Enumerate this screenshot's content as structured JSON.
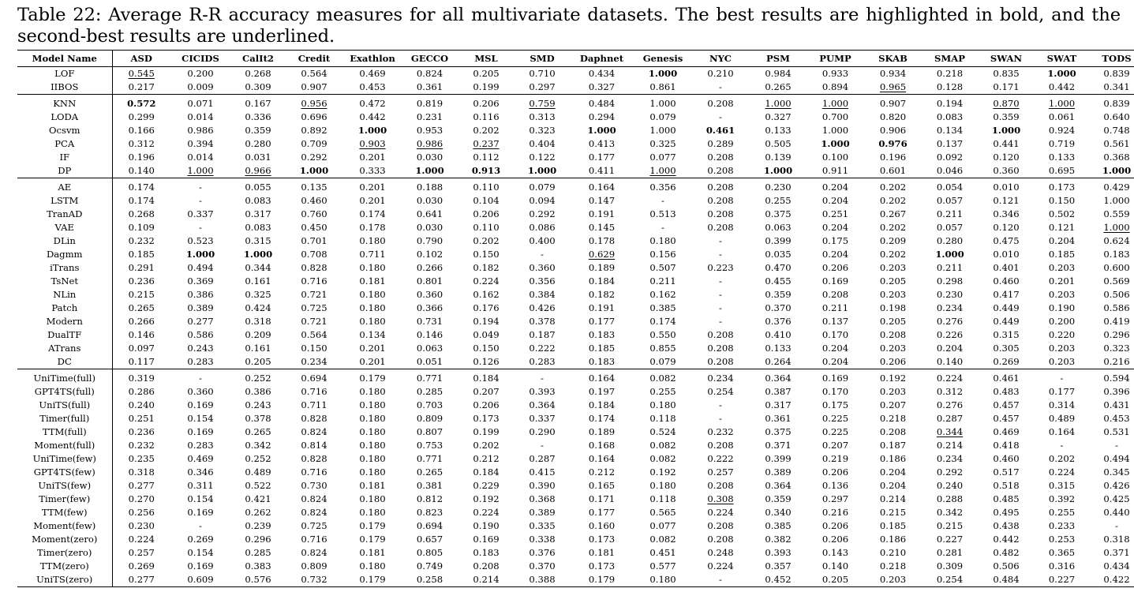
{
  "caption": "Table 22: Average R-R accuracy measures for all multivariate datasets. The best results are highlighted in bold, and the second-best results are underlined.",
  "columns": [
    "Model Name",
    "ASD",
    "CICIDS",
    "CalIt2",
    "Credit",
    "Exathlon",
    "GECCO",
    "MSL",
    "SMD",
    "Daphnet",
    "Genesis",
    "NYC",
    "PSM",
    "PUMP",
    "SKAB",
    "SMAP",
    "SWAN",
    "SWAT",
    "TODS"
  ],
  "groups": [
    [
      {
        "name": "LOF",
        "values": [
          "0.545",
          "0.200",
          "0.268",
          "0.564",
          "0.469",
          "0.824",
          "0.205",
          "0.710",
          "0.434",
          "1.000",
          "0.210",
          "0.984",
          "0.933",
          "0.934",
          "0.218",
          "0.835",
          "1.000",
          "0.839"
        ],
        "bold": [
          9,
          16
        ],
        "underline": [
          0
        ]
      },
      {
        "name": "IIBOS",
        "values": [
          "0.217",
          "0.009",
          "0.309",
          "0.907",
          "0.453",
          "0.361",
          "0.199",
          "0.297",
          "0.327",
          "0.861",
          "-",
          "0.265",
          "0.894",
          "0.965",
          "0.128",
          "0.171",
          "0.442",
          "0.341"
        ],
        "bold": [],
        "underline": [
          13
        ]
      }
    ],
    [
      {
        "name": "KNN",
        "values": [
          "0.572",
          "0.071",
          "0.167",
          "0.956",
          "0.472",
          "0.819",
          "0.206",
          "0.759",
          "0.484",
          "1.000",
          "0.208",
          "1.000",
          "1.000",
          "0.907",
          "0.194",
          "0.870",
          "1.000",
          "0.839"
        ],
        "bold": [
          0
        ],
        "underline": [
          3,
          7,
          11,
          12,
          15,
          16
        ]
      },
      {
        "name": "LODA",
        "values": [
          "0.299",
          "0.014",
          "0.336",
          "0.696",
          "0.442",
          "0.231",
          "0.116",
          "0.313",
          "0.294",
          "0.079",
          "-",
          "0.327",
          "0.700",
          "0.820",
          "0.083",
          "0.359",
          "0.061",
          "0.640"
        ],
        "bold": [],
        "underline": []
      },
      {
        "name": "Ocsvm",
        "values": [
          "0.166",
          "0.986",
          "0.359",
          "0.892",
          "1.000",
          "0.953",
          "0.202",
          "0.323",
          "1.000",
          "1.000",
          "0.461",
          "0.133",
          "1.000",
          "0.906",
          "0.134",
          "1.000",
          "0.924",
          "0.748"
        ],
        "bold": [
          4,
          8,
          10,
          15
        ],
        "underline": []
      },
      {
        "name": "PCA",
        "values": [
          "0.312",
          "0.394",
          "0.280",
          "0.709",
          "0.903",
          "0.986",
          "0.237",
          "0.404",
          "0.413",
          "0.325",
          "0.289",
          "0.505",
          "1.000",
          "0.976",
          "0.137",
          "0.441",
          "0.719",
          "0.561"
        ],
        "bold": [
          12,
          13
        ],
        "underline": [
          4,
          5,
          6
        ]
      },
      {
        "name": "IF",
        "values": [
          "0.196",
          "0.014",
          "0.031",
          "0.292",
          "0.201",
          "0.030",
          "0.112",
          "0.122",
          "0.177",
          "0.077",
          "0.208",
          "0.139",
          "0.100",
          "0.196",
          "0.092",
          "0.120",
          "0.133",
          "0.368"
        ],
        "bold": [],
        "underline": []
      },
      {
        "name": "DP",
        "values": [
          "0.140",
          "1.000",
          "0.966",
          "1.000",
          "0.333",
          "1.000",
          "0.913",
          "1.000",
          "0.411",
          "1.000",
          "0.208",
          "1.000",
          "0.911",
          "0.601",
          "0.046",
          "0.360",
          "0.695",
          "1.000"
        ],
        "bold": [
          3,
          5,
          6,
          7,
          11,
          17
        ],
        "underline": [
          1,
          2,
          9
        ]
      }
    ],
    [
      {
        "name": "AE",
        "values": [
          "0.174",
          "-",
          "0.055",
          "0.135",
          "0.201",
          "0.188",
          "0.110",
          "0.079",
          "0.164",
          "0.356",
          "0.208",
          "0.230",
          "0.204",
          "0.202",
          "0.054",
          "0.010",
          "0.173",
          "0.429"
        ],
        "bold": [],
        "underline": []
      },
      {
        "name": "LSTM",
        "values": [
          "0.174",
          "-",
          "0.083",
          "0.460",
          "0.201",
          "0.030",
          "0.104",
          "0.094",
          "0.147",
          "-",
          "0.208",
          "0.255",
          "0.204",
          "0.202",
          "0.057",
          "0.121",
          "0.150",
          "1.000"
        ],
        "bold": [],
        "underline": []
      },
      {
        "name": "TranAD",
        "values": [
          "0.268",
          "0.337",
          "0.317",
          "0.760",
          "0.174",
          "0.641",
          "0.206",
          "0.292",
          "0.191",
          "0.513",
          "0.208",
          "0.375",
          "0.251",
          "0.267",
          "0.211",
          "0.346",
          "0.502",
          "0.559"
        ],
        "bold": [],
        "underline": []
      },
      {
        "name": "VAE",
        "values": [
          "0.109",
          "-",
          "0.083",
          "0.450",
          "0.178",
          "0.030",
          "0.110",
          "0.086",
          "0.145",
          "-",
          "0.208",
          "0.063",
          "0.204",
          "0.202",
          "0.057",
          "0.120",
          "0.121",
          "1.000"
        ],
        "bold": [],
        "underline": [
          17
        ]
      },
      {
        "name": "DLin",
        "values": [
          "0.232",
          "0.523",
          "0.315",
          "0.701",
          "0.180",
          "0.790",
          "0.202",
          "0.400",
          "0.178",
          "0.180",
          "-",
          "0.399",
          "0.175",
          "0.209",
          "0.280",
          "0.475",
          "0.204",
          "0.624"
        ],
        "bold": [],
        "underline": []
      },
      {
        "name": "Dagmm",
        "values": [
          "0.185",
          "1.000",
          "1.000",
          "0.708",
          "0.711",
          "0.102",
          "0.150",
          "-",
          "0.629",
          "0.156",
          "-",
          "0.035",
          "0.204",
          "0.202",
          "1.000",
          "0.010",
          "0.185",
          "0.183"
        ],
        "bold": [
          1,
          2,
          14
        ],
        "underline": [
          8
        ]
      },
      {
        "name": "iTrans",
        "values": [
          "0.291",
          "0.494",
          "0.344",
          "0.828",
          "0.180",
          "0.266",
          "0.182",
          "0.360",
          "0.189",
          "0.507",
          "0.223",
          "0.470",
          "0.206",
          "0.203",
          "0.211",
          "0.401",
          "0.203",
          "0.600"
        ],
        "bold": [],
        "underline": []
      },
      {
        "name": "TsNet",
        "values": [
          "0.236",
          "0.369",
          "0.161",
          "0.716",
          "0.181",
          "0.801",
          "0.224",
          "0.356",
          "0.184",
          "0.211",
          "-",
          "0.455",
          "0.169",
          "0.205",
          "0.298",
          "0.460",
          "0.201",
          "0.569"
        ],
        "bold": [],
        "underline": []
      },
      {
        "name": "NLin",
        "values": [
          "0.215",
          "0.386",
          "0.325",
          "0.721",
          "0.180",
          "0.360",
          "0.162",
          "0.384",
          "0.182",
          "0.162",
          "-",
          "0.359",
          "0.208",
          "0.203",
          "0.230",
          "0.417",
          "0.203",
          "0.506"
        ],
        "bold": [],
        "underline": []
      },
      {
        "name": "Patch",
        "values": [
          "0.265",
          "0.389",
          "0.424",
          "0.725",
          "0.180",
          "0.366",
          "0.176",
          "0.426",
          "0.191",
          "0.385",
          "-",
          "0.370",
          "0.211",
          "0.198",
          "0.234",
          "0.449",
          "0.190",
          "0.586"
        ],
        "bold": [],
        "underline": []
      },
      {
        "name": "Modern",
        "values": [
          "0.266",
          "0.277",
          "0.318",
          "0.721",
          "0.180",
          "0.731",
          "0.194",
          "0.378",
          "0.177",
          "0.174",
          "-",
          "0.376",
          "0.137",
          "0.205",
          "0.276",
          "0.449",
          "0.200",
          "0.419"
        ],
        "bold": [],
        "underline": []
      },
      {
        "name": "DualTF",
        "values": [
          "0.146",
          "0.586",
          "0.209",
          "0.564",
          "0.134",
          "0.146",
          "0.049",
          "0.187",
          "0.183",
          "0.550",
          "0.208",
          "0.410",
          "0.170",
          "0.208",
          "0.226",
          "0.315",
          "0.220",
          "0.296"
        ],
        "bold": [],
        "underline": []
      },
      {
        "name": "ATrans",
        "values": [
          "0.097",
          "0.243",
          "0.161",
          "0.150",
          "0.201",
          "0.063",
          "0.150",
          "0.222",
          "0.185",
          "0.855",
          "0.208",
          "0.133",
          "0.204",
          "0.203",
          "0.204",
          "0.305",
          "0.203",
          "0.323"
        ],
        "bold": [],
        "underline": []
      },
      {
        "name": "DC",
        "values": [
          "0.117",
          "0.283",
          "0.205",
          "0.234",
          "0.201",
          "0.051",
          "0.126",
          "0.283",
          "0.183",
          "0.079",
          "0.208",
          "0.264",
          "0.204",
          "0.206",
          "0.140",
          "0.269",
          "0.203",
          "0.216"
        ],
        "bold": [],
        "underline": []
      }
    ],
    [
      {
        "name": "UniTime(full)",
        "values": [
          "0.319",
          "-",
          "0.252",
          "0.694",
          "0.179",
          "0.771",
          "0.184",
          "-",
          "0.164",
          "0.082",
          "0.234",
          "0.364",
          "0.169",
          "0.192",
          "0.224",
          "0.461",
          "-",
          "0.594"
        ],
        "bold": [],
        "underline": []
      },
      {
        "name": "GPT4TS(full)",
        "values": [
          "0.286",
          "0.360",
          "0.386",
          "0.716",
          "0.180",
          "0.285",
          "0.207",
          "0.393",
          "0.197",
          "0.255",
          "0.254",
          "0.387",
          "0.170",
          "0.203",
          "0.312",
          "0.483",
          "0.177",
          "0.396"
        ],
        "bold": [],
        "underline": []
      },
      {
        "name": "UniTS(full)",
        "values": [
          "0.240",
          "0.169",
          "0.243",
          "0.711",
          "0.180",
          "0.703",
          "0.206",
          "0.364",
          "0.184",
          "0.180",
          "-",
          "0.317",
          "0.175",
          "0.207",
          "0.276",
          "0.457",
          "0.314",
          "0.431"
        ],
        "bold": [],
        "underline": []
      },
      {
        "name": "Timer(full)",
        "values": [
          "0.251",
          "0.154",
          "0.378",
          "0.828",
          "0.180",
          "0.809",
          "0.173",
          "0.337",
          "0.174",
          "0.118",
          "-",
          "0.361",
          "0.225",
          "0.218",
          "0.287",
          "0.457",
          "0.489",
          "0.453"
        ],
        "bold": [],
        "underline": []
      },
      {
        "name": "TTM(full)",
        "values": [
          "0.236",
          "0.169",
          "0.265",
          "0.824",
          "0.180",
          "0.807",
          "0.199",
          "0.290",
          "0.189",
          "0.524",
          "0.232",
          "0.375",
          "0.225",
          "0.208",
          "0.344",
          "0.469",
          "0.164",
          "0.531"
        ],
        "bold": [],
        "underline": [
          14
        ]
      },
      {
        "name": "Moment(full)",
        "values": [
          "0.232",
          "0.283",
          "0.342",
          "0.814",
          "0.180",
          "0.753",
          "0.202",
          "-",
          "0.168",
          "0.082",
          "0.208",
          "0.371",
          "0.207",
          "0.187",
          "0.214",
          "0.418",
          "-",
          "-"
        ],
        "bold": [],
        "underline": []
      },
      {
        "name": "UniTime(few)",
        "values": [
          "0.235",
          "0.469",
          "0.252",
          "0.828",
          "0.180",
          "0.771",
          "0.212",
          "0.287",
          "0.164",
          "0.082",
          "0.222",
          "0.399",
          "0.219",
          "0.186",
          "0.234",
          "0.460",
          "0.202",
          "0.494"
        ],
        "bold": [],
        "underline": []
      },
      {
        "name": "GPT4TS(few)",
        "values": [
          "0.318",
          "0.346",
          "0.489",
          "0.716",
          "0.180",
          "0.265",
          "0.184",
          "0.415",
          "0.212",
          "0.192",
          "0.257",
          "0.389",
          "0.206",
          "0.204",
          "0.292",
          "0.517",
          "0.224",
          "0.345"
        ],
        "bold": [],
        "underline": []
      },
      {
        "name": "UniTS(few)",
        "values": [
          "0.277",
          "0.311",
          "0.522",
          "0.730",
          "0.181",
          "0.381",
          "0.229",
          "0.390",
          "0.165",
          "0.180",
          "0.208",
          "0.364",
          "0.136",
          "0.204",
          "0.240",
          "0.518",
          "0.315",
          "0.426"
        ],
        "bold": [],
        "underline": []
      },
      {
        "name": "Timer(few)",
        "values": [
          "0.270",
          "0.154",
          "0.421",
          "0.824",
          "0.180",
          "0.812",
          "0.192",
          "0.368",
          "0.171",
          "0.118",
          "0.308",
          "0.359",
          "0.297",
          "0.214",
          "0.288",
          "0.485",
          "0.392",
          "0.425"
        ],
        "bold": [],
        "underline": [
          10
        ]
      },
      {
        "name": "TTM(few)",
        "values": [
          "0.256",
          "0.169",
          "0.262",
          "0.824",
          "0.180",
          "0.823",
          "0.224",
          "0.389",
          "0.177",
          "0.565",
          "0.224",
          "0.340",
          "0.216",
          "0.215",
          "0.342",
          "0.495",
          "0.255",
          "0.440"
        ],
        "bold": [],
        "underline": []
      },
      {
        "name": "Moment(few)",
        "values": [
          "0.230",
          "-",
          "0.239",
          "0.725",
          "0.179",
          "0.694",
          "0.190",
          "0.335",
          "0.160",
          "0.077",
          "0.208",
          "0.385",
          "0.206",
          "0.185",
          "0.215",
          "0.438",
          "0.233",
          "-"
        ],
        "bold": [],
        "underline": []
      },
      {
        "name": "Moment(zero)",
        "values": [
          "0.224",
          "0.269",
          "0.296",
          "0.716",
          "0.179",
          "0.657",
          "0.169",
          "0.338",
          "0.173",
          "0.082",
          "0.208",
          "0.382",
          "0.206",
          "0.186",
          "0.227",
          "0.442",
          "0.253",
          "0.318"
        ],
        "bold": [],
        "underline": []
      },
      {
        "name": "Timer(zero)",
        "values": [
          "0.257",
          "0.154",
          "0.285",
          "0.824",
          "0.181",
          "0.805",
          "0.183",
          "0.376",
          "0.181",
          "0.451",
          "0.248",
          "0.393",
          "0.143",
          "0.210",
          "0.281",
          "0.482",
          "0.365",
          "0.371"
        ],
        "bold": [],
        "underline": []
      },
      {
        "name": "TTM(zero)",
        "values": [
          "0.269",
          "0.169",
          "0.383",
          "0.809",
          "0.180",
          "0.749",
          "0.208",
          "0.370",
          "0.173",
          "0.577",
          "0.224",
          "0.357",
          "0.140",
          "0.218",
          "0.309",
          "0.506",
          "0.316",
          "0.434"
        ],
        "bold": [],
        "underline": []
      },
      {
        "name": "UniTS(zero)",
        "values": [
          "0.277",
          "0.609",
          "0.576",
          "0.732",
          "0.179",
          "0.258",
          "0.214",
          "0.388",
          "0.179",
          "0.180",
          "-",
          "0.452",
          "0.205",
          "0.203",
          "0.254",
          "0.484",
          "0.227",
          "0.422"
        ],
        "bold": [],
        "underline": []
      }
    ]
  ]
}
